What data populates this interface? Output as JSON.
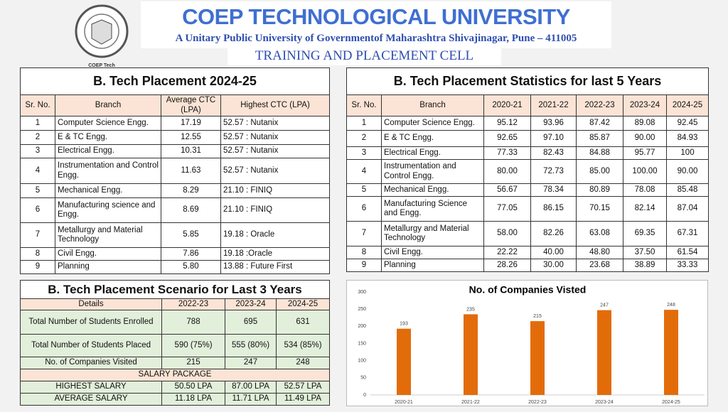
{
  "header": {
    "logo_text": "COEP Tech",
    "title": "COEP TECHNOLOGICAL UNIVERSITY",
    "subtitle": "A Unitary Public University of Governmentof Maharashtra Shivajinagar, Pune – 411005",
    "cell": "TRAINING AND PLACEMENT CELL"
  },
  "table1": {
    "title": "B. Tech Placement 2024-25",
    "columns": [
      "Sr. No.",
      "Branch",
      "Average CTC (LPA)",
      "Highest CTC (LPA)"
    ],
    "rows": [
      [
        "1",
        "Computer Science Engg.",
        "17.19",
        "52.57 : Nutanix"
      ],
      [
        "2",
        "E & TC Engg.",
        "12.55",
        "52.57 : Nutanix"
      ],
      [
        "3",
        "Electrical Engg.",
        "10.31",
        "52.57 : Nutanix"
      ],
      [
        "4",
        "Instrumentation and Control Engg.",
        "11.63",
        "52.57 : Nutanix"
      ],
      [
        "5",
        "Mechanical Engg.",
        "8.29",
        "21.10 : FINIQ"
      ],
      [
        "6",
        "Manufacturing science and Engg.",
        "8.69",
        "21.10 : FINIQ"
      ],
      [
        "7",
        "Metallurgy and Material Technology",
        "5.85",
        "19.18 : Oracle"
      ],
      [
        "8",
        "Civil Engg.",
        "7.86",
        "19.18 :Oracle"
      ],
      [
        "9",
        "Planning",
        "5.80",
        "13.88 : Future First"
      ]
    ]
  },
  "table2": {
    "title": "B. Tech Placement Statistics for last 5 Years",
    "columns": [
      "Sr. No.",
      "Branch",
      "2020-21",
      "2021-22",
      "2022-23",
      "2023-24",
      "2024-25"
    ],
    "rows": [
      [
        "1",
        "Computer Science Engg.",
        "95.12",
        "93.96",
        "87.42",
        "89.08",
        "92.45"
      ],
      [
        "2",
        "E & TC Engg.",
        "92.65",
        "97.10",
        "85.87",
        "90.00",
        "84.93"
      ],
      [
        "3",
        "Electrical Engg.",
        "77.33",
        "82.43",
        "84.88",
        "95.77",
        "100"
      ],
      [
        "4",
        "Instrumentation and Control Engg.",
        "80.00",
        "72.73",
        "85.00",
        "100.00",
        "90.00"
      ],
      [
        "5",
        "Mechanical Engg.",
        "56.67",
        "78.34",
        "80.89",
        "78.08",
        "85.48"
      ],
      [
        "6",
        "Manufacturing Science and Engg.",
        "77.05",
        "86.15",
        "70.15",
        "82.14",
        "87.04"
      ],
      [
        "7",
        "Metallurgy and Material Technology",
        "58.00",
        "82.26",
        "63.08",
        "69.35",
        "67.31"
      ],
      [
        "8",
        "Civil Engg.",
        "22.22",
        "40.00",
        "48.80",
        "37.50",
        "61.54"
      ],
      [
        "9",
        "Planning",
        "28.26",
        "30.00",
        "23.68",
        "38.89",
        "33.33"
      ]
    ]
  },
  "table3": {
    "title": "B. Tech Placement Scenario for Last   3 Years",
    "columns": [
      "Details",
      "2022-23",
      "2023-24",
      "2024-25"
    ],
    "rows": [
      [
        "Total Number of Students Enrolled",
        "788",
        "695",
        "631"
      ],
      [
        "Total Number of Students Placed",
        "590 (75%)",
        "555 (80%)",
        "534 (85%)"
      ],
      [
        "No. of Companies Visited",
        "215",
        "247",
        "248"
      ]
    ],
    "salary_header": "SALARY  PACKAGE",
    "salary_rows": [
      [
        "HIGHEST SALARY",
        "50.50 LPA",
        "87.00 LPA",
        "52.57 LPA"
      ],
      [
        "AVERAGE SALARY",
        "11.18 LPA",
        "11.71 LPA",
        "11.49 LPA"
      ]
    ]
  },
  "chart_data": {
    "type": "bar",
    "title": "No. of Companies Visted",
    "categories": [
      "2020-21",
      "2021-22",
      "2022-23",
      "2023-24",
      "2024-25"
    ],
    "values": [
      193,
      235,
      215,
      247,
      248
    ],
    "color": "#e36c0a",
    "ylim": [
      0,
      300
    ],
    "yticks": [
      0,
      50,
      100,
      150,
      200,
      250,
      300
    ],
    "grid": false,
    "value_labels_shown": true
  }
}
